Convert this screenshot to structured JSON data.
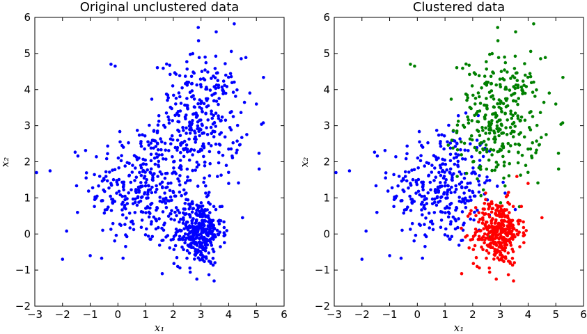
{
  "chart_data": [
    {
      "type": "scatter",
      "title": "Original unclustered data",
      "xlabel": "x₁",
      "ylabel": "x₂",
      "xlim": [
        -3,
        6
      ],
      "ylim": [
        -2,
        6
      ],
      "xticks": [
        "−3",
        "−2",
        "−1",
        "0",
        "1",
        "2",
        "3",
        "4",
        "5",
        "6"
      ],
      "yticks": [
        "−2",
        "−1",
        "0",
        "1",
        "2",
        "3",
        "4",
        "5",
        "6"
      ],
      "grid": false,
      "legend": "none",
      "series": [
        {
          "color": "#0000ff",
          "points": "all"
        }
      ]
    },
    {
      "type": "scatter",
      "title": "Clustered data",
      "xlabel": "x₁",
      "ylabel": "x₂",
      "xlim": [
        -3,
        6
      ],
      "ylim": [
        -2,
        6
      ],
      "xticks": [
        "−3",
        "−2",
        "−1",
        "0",
        "1",
        "2",
        "3",
        "4",
        "5",
        "6"
      ],
      "yticks": [
        "−2",
        "−1",
        "0",
        "1",
        "2",
        "3",
        "4",
        "5",
        "6"
      ],
      "grid": false,
      "legend": "none",
      "series": [
        {
          "color": "#0000ff",
          "cluster": "blue"
        },
        {
          "color": "#008000",
          "cluster": "green"
        },
        {
          "color": "#ff0000",
          "cluster": "red"
        }
      ]
    }
  ],
  "clusters": [
    {
      "color": "#0000ff",
      "count": 330,
      "center": [
        0.9,
        1.3
      ],
      "spread": [
        0.95,
        0.85
      ]
    },
    {
      "color": "#008000",
      "count": 320,
      "center": [
        3.0,
        3.2
      ],
      "spread": [
        0.75,
        0.85
      ]
    },
    {
      "color": "#ff0000",
      "count": 350,
      "center": [
        2.9,
        0.05
      ],
      "spread": [
        0.42,
        0.45
      ]
    }
  ],
  "outliers": [
    [
      -2.45,
      1.75
    ],
    [
      -2.0,
      -0.7
    ],
    [
      -1.0,
      -0.6
    ],
    [
      -0.25,
      4.7
    ],
    [
      -0.1,
      4.65
    ],
    [
      4.2,
      5.82
    ],
    [
      3.55,
      5.6
    ],
    [
      2.9,
      5.72
    ],
    [
      5.1,
      1.8
    ],
    [
      5.0,
      3.6
    ],
    [
      1.6,
      -1.1
    ],
    [
      2.85,
      -1.25
    ],
    [
      -1.85,
      0.08
    ],
    [
      4.5,
      0.45
    ],
    [
      4.0,
      1.4
    ]
  ]
}
